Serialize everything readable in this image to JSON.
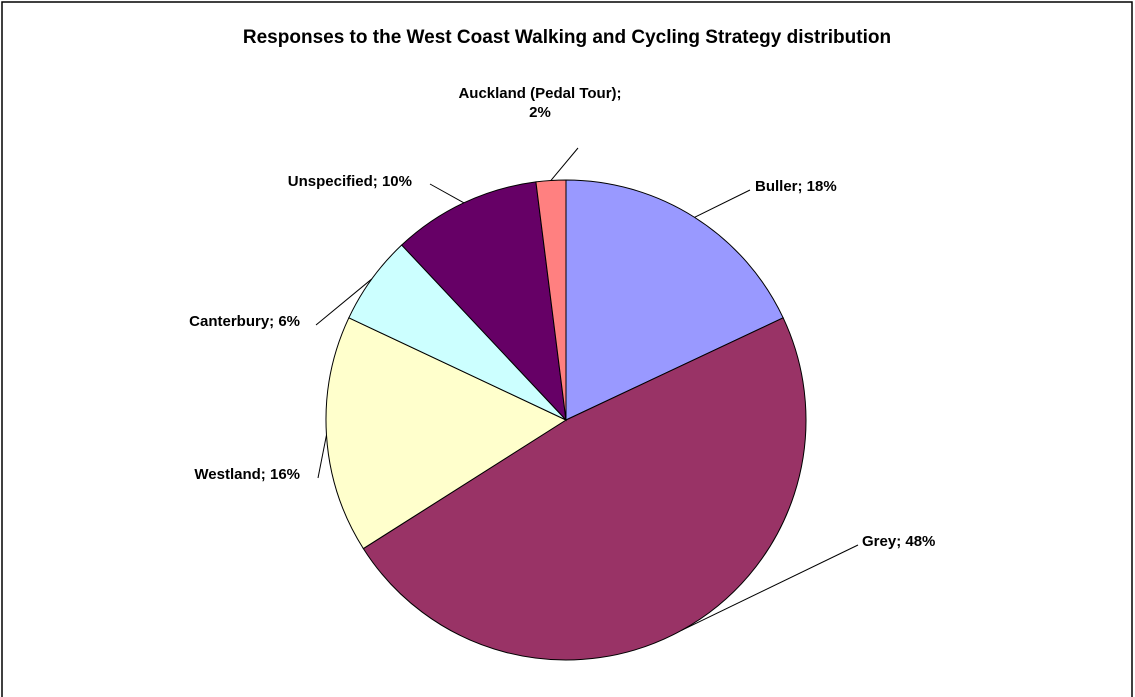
{
  "chart_data": {
    "type": "pie",
    "title": "Responses to the West Coast Walking and Cycling Strategy distribution",
    "values": [
      18,
      48,
      16,
      6,
      10,
      2
    ],
    "value_labels": [
      "Buller; 18%",
      "Grey; 48%",
      "Westland; 16%",
      "Canterbury; 6%",
      "Unspecified; 10%",
      "Auckland (Pedal Tour); 2%"
    ],
    "colors": [
      "#9999ff",
      "#993366",
      "#ffffcc",
      "#ccffff",
      "#660066",
      "#ff8080"
    ]
  }
}
